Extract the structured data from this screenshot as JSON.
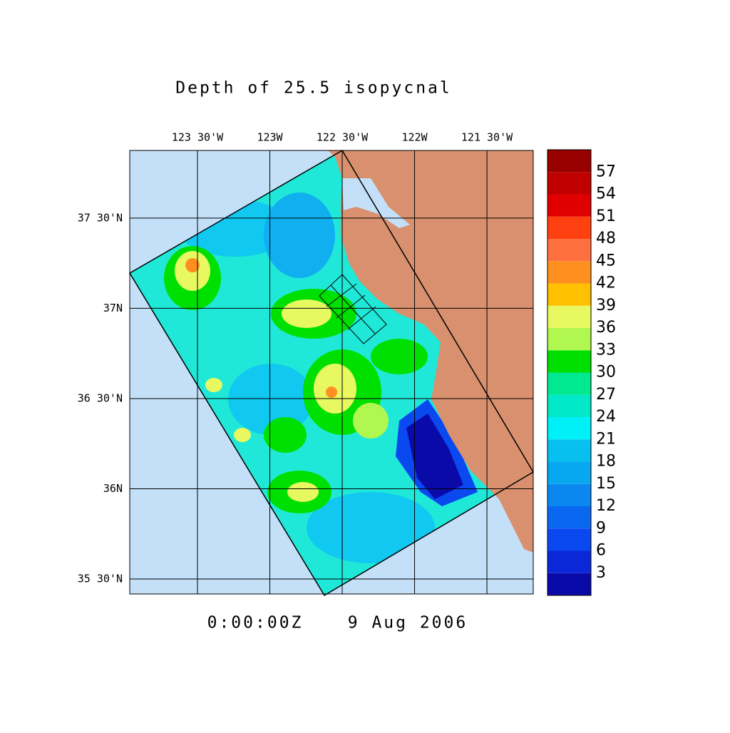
{
  "title": "Depth of 25.5 isopycnal",
  "map": {
    "lonlim": [
      -123.968,
      -121.18
    ],
    "latlim": [
      35.417,
      37.875
    ],
    "lon_ticks": [
      {
        "value": -123.5,
        "label": "123 30'W"
      },
      {
        "value": -123,
        "label": "123W"
      },
      {
        "value": -122.5,
        "label": "122 30'W"
      },
      {
        "value": -122,
        "label": "122W"
      },
      {
        "value": -121.5,
        "label": "121 30'W"
      }
    ],
    "lat_ticks": [
      {
        "value": 37.5,
        "label": "37 30'N"
      },
      {
        "value": 37,
        "label": "37N"
      },
      {
        "value": 36.5,
        "label": "36 30'N"
      },
      {
        "value": 36,
        "label": "36N"
      },
      {
        "value": 35.5,
        "label": "35 30'N"
      }
    ]
  },
  "colorbar": {
    "levels": [
      0,
      3,
      6,
      9,
      12,
      15,
      18,
      21,
      24,
      27,
      30,
      33,
      36,
      39,
      42,
      45,
      48,
      51,
      54,
      57,
      60
    ],
    "colors": [
      "#0a0aa8",
      "#0a28d8",
      "#0a48f0",
      "#0a68f0",
      "#0a88f0",
      "#08a8f0",
      "#08c0f0",
      "#00f0f8",
      "#00e8c8",
      "#00e890",
      "#00e000",
      "#b0f850",
      "#e8f860",
      "#ffc000",
      "#ff9020",
      "#ff7040",
      "#ff4010",
      "#e00000",
      "#c00000",
      "#980000"
    ]
  },
  "footer": {
    "time": "0:00:00Z",
    "date": "9 Aug 2006"
  }
}
